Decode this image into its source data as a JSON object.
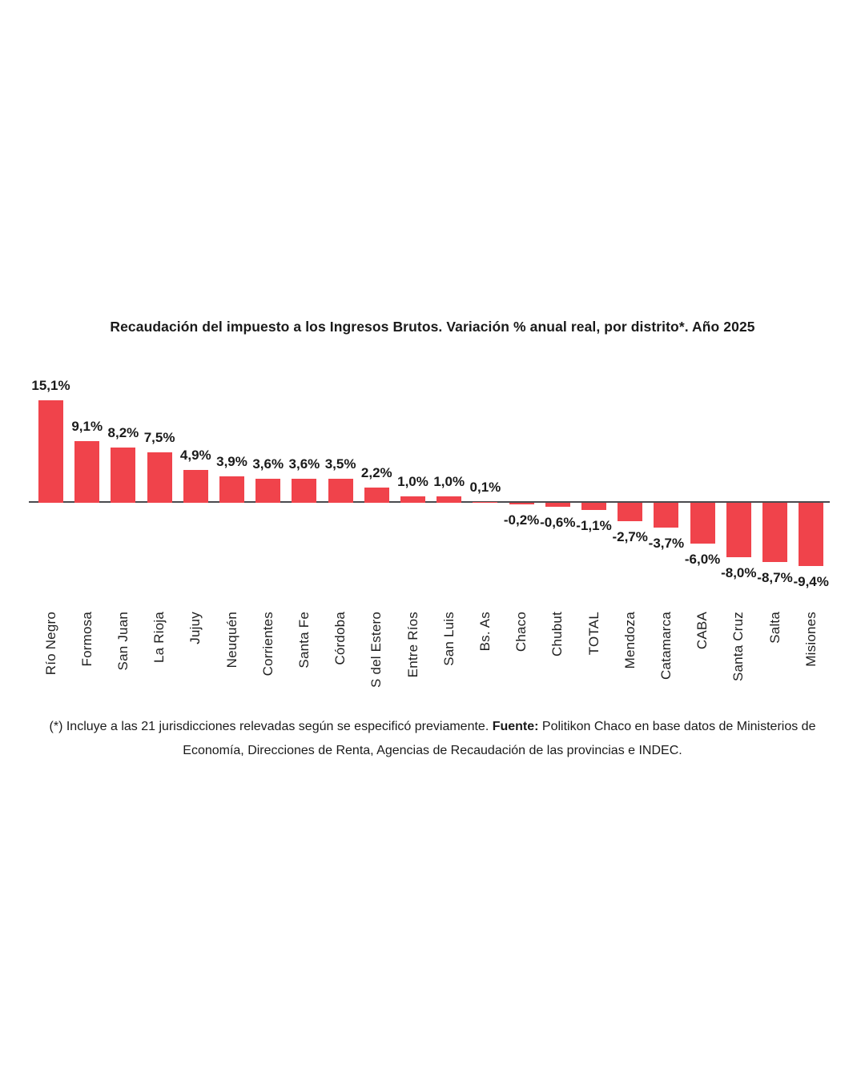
{
  "chart_data": {
    "type": "bar",
    "title": "Recaudación del impuesto a los Ingresos Brutos. Variación % anual real, por distrito*. Año 2025",
    "categories": [
      "Río Negro",
      "Formosa",
      "San Juan",
      "La Rioja",
      "Jujuy",
      "Neuquén",
      "Corrientes",
      "Santa Fe",
      "Córdoba",
      "S del Estero",
      "Entre Ríos",
      "San Luis",
      "Bs. As",
      "Chaco",
      "Chubut",
      "TOTAL",
      "Mendoza",
      "Catamarca",
      "CABA",
      "Santa Cruz",
      "Salta",
      "Misiones"
    ],
    "values": [
      15.1,
      9.1,
      8.2,
      7.5,
      4.9,
      3.9,
      3.6,
      3.6,
      3.5,
      2.2,
      1.0,
      1.0,
      0.1,
      -0.2,
      -0.6,
      -1.1,
      -2.7,
      -3.7,
      -6.0,
      -8.0,
      -8.7,
      -9.4
    ],
    "value_labels": [
      "15,1%",
      "9,1%",
      "8,2%",
      "7,5%",
      "4,9%",
      "3,9%",
      "3,6%",
      "3,6%",
      "3,5%",
      "2,2%",
      "1,0%",
      "1,0%",
      "0,1%",
      "-0,2%",
      "-0,6%",
      "-1,1%",
      "-2,7%",
      "-3,7%",
      "-6,0%",
      "-8,0%",
      "-8,7%",
      "-9,4%"
    ],
    "xlabel": "",
    "ylabel": "",
    "ylim": [
      -10,
      16
    ],
    "grid": false,
    "legend": "none",
    "bar_color": "#F0434B",
    "axis_line_color": "#4A4A4E"
  },
  "footer": {
    "line1_prefix": "(*) Incluye a las 21 jurisdicciones relevadas según se especificó previamente. ",
    "line1_bold": "Fuente:",
    "line1_suffix": " Politikon Chaco en base datos de Ministerios de",
    "line2": "Economía, Direcciones de Renta, Agencias de Recaudación de las provincias e INDEC."
  }
}
